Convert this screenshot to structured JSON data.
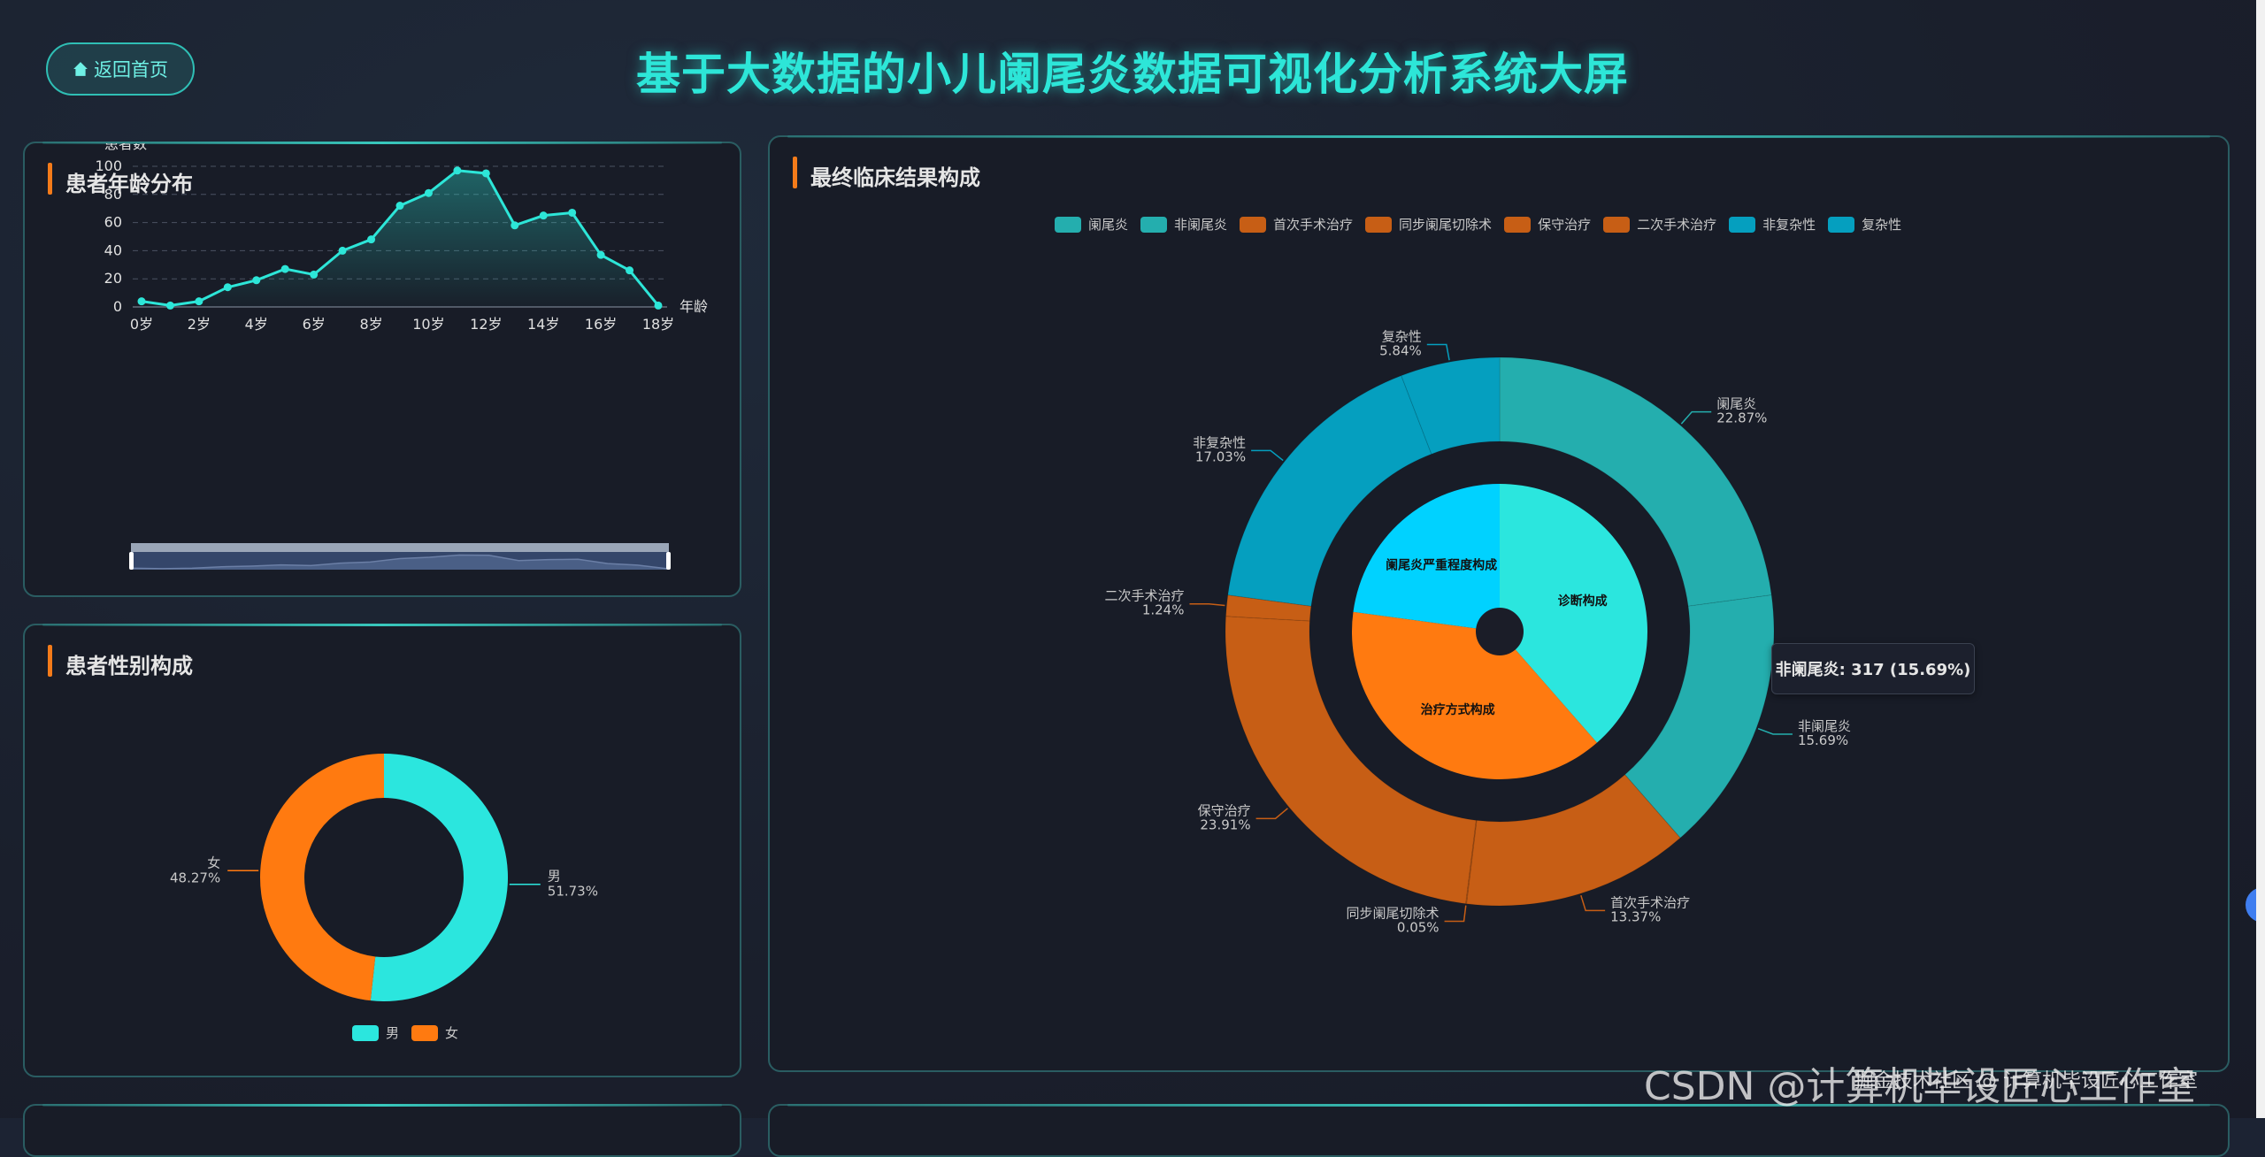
{
  "header": {
    "home_button": {
      "label": "返回首页",
      "icon": "home-icon"
    },
    "title": "基于大数据的小儿阑尾炎数据可视化分析系统大屏"
  },
  "colors": {
    "accent": "#2de6d8",
    "orange": "#ff7a10",
    "panel_border": "#2a5d62",
    "title_bar": "#f47b1a"
  },
  "panels": {
    "age": {
      "title": "患者年龄分布"
    },
    "gender": {
      "title": "患者性别构成"
    },
    "clinical": {
      "title": "最终临床结果构成"
    }
  },
  "tooltip": {
    "text": "非阑尾炎: 317 (15.69%)"
  },
  "watermark": {
    "main": "CSDN @计算机毕设匠心工作室",
    "overlay": "掘金技术社区 @ 计算机毕设匠心工作室"
  },
  "chart_data": [
    {
      "type": "line",
      "title": "患者年龄分布",
      "xlabel": "年龄",
      "ylabel": "患者数",
      "categories": [
        "0岁",
        "1岁",
        "2岁",
        "3岁",
        "4岁",
        "5岁",
        "6岁",
        "7岁",
        "8岁",
        "9岁",
        "10岁",
        "11岁",
        "12岁",
        "13岁",
        "14岁",
        "15岁",
        "16岁",
        "17岁",
        "18岁"
      ],
      "x_tick_labels": [
        "0岁",
        "2岁",
        "4岁",
        "6岁",
        "8岁",
        "10岁",
        "12岁",
        "14岁",
        "16岁",
        "18岁"
      ],
      "values": [
        4,
        1,
        4,
        14,
        19,
        27,
        23,
        40,
        48,
        72,
        81,
        97,
        95,
        58,
        65,
        67,
        37,
        26,
        1
      ],
      "y_ticks": [
        0,
        20,
        40,
        60,
        80,
        100
      ],
      "ylim": [
        0,
        100
      ],
      "grid": true,
      "area_fill": true,
      "datazoom_slider": true,
      "color": "#2de6d8"
    },
    {
      "type": "pie",
      "title": "患者性别构成",
      "donut": true,
      "slices": [
        {
          "name": "男",
          "percent": "51.73%",
          "value": 51.73,
          "color": "#2be6de"
        },
        {
          "name": "女",
          "percent": "48.27%",
          "value": 48.27,
          "color": "#ff7a10"
        }
      ],
      "legend": [
        "男",
        "女"
      ],
      "legend_position": "bottom"
    },
    {
      "type": "pie",
      "title": "最终临床结果构成",
      "nested": true,
      "legend": [
        "阑尾炎",
        "非阑尾炎",
        "首次手术治疗",
        "同步阑尾切除术",
        "保守治疗",
        "二次手术治疗",
        "非复杂性",
        "复杂性"
      ],
      "legend_position": "top",
      "inner": [
        {
          "name": "诊断构成",
          "value": 38.56,
          "color": "#2be6de"
        },
        {
          "name": "治疗方式构成",
          "value": 38.57,
          "color": "#ff7a10"
        },
        {
          "name": "阑尾炎严重程度构成",
          "value": 22.87,
          "color": "#00d2ff"
        }
      ],
      "outer": [
        {
          "name": "阑尾炎",
          "percent": "22.87%",
          "value": 22.87,
          "color": "#24aeae"
        },
        {
          "name": "非阑尾炎",
          "percent": "15.69%",
          "value": 15.69,
          "count": 317,
          "color": "#24aeae"
        },
        {
          "name": "首次手术治疗",
          "percent": "13.37%",
          "value": 13.37,
          "color": "#c75e15"
        },
        {
          "name": "同步阑尾切除术",
          "percent": "0.05%",
          "value": 0.05,
          "color": "#c75e15"
        },
        {
          "name": "保守治疗",
          "percent": "23.91%",
          "value": 23.91,
          "color": "#c75e15"
        },
        {
          "name": "二次手术治疗",
          "percent": "1.24%",
          "value": 1.24,
          "color": "#c75e15"
        },
        {
          "name": "非复杂性",
          "percent": "17.03%",
          "value": 17.03,
          "color": "#059fbf"
        },
        {
          "name": "复杂性",
          "percent": "5.84%",
          "value": 5.84,
          "color": "#059fbf"
        }
      ]
    }
  ]
}
